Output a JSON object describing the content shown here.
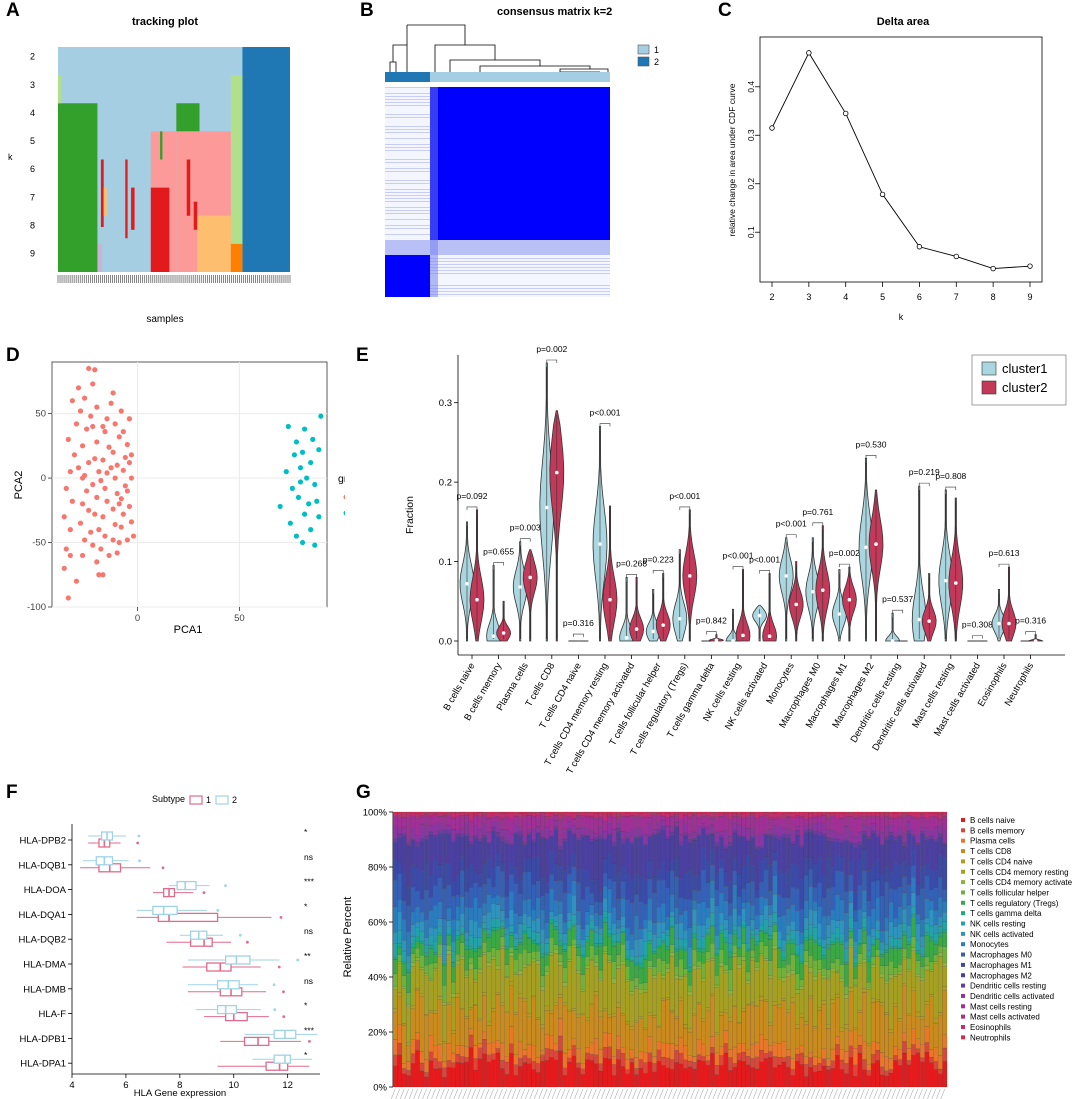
{
  "panel_labels": [
    "A",
    "B",
    "C",
    "D",
    "E",
    "F",
    "G"
  ],
  "colors": {
    "light_blue": "#a6cee3",
    "dark_blue": "#1f78b4",
    "green": "#33a02c",
    "light_green": "#b2df8a",
    "red": "#e31a1c",
    "pink": "#fb9a99",
    "light_orange": "#fdbf6f",
    "orange": "#ff7f00",
    "lavender": "#cab2d6",
    "blue": "#0000ff",
    "salmon": "#f8766d",
    "teal": "#00bfc4",
    "violin_blue": "#aad6df",
    "violin_red": "#c4395a",
    "box_pink": "#e06b8b",
    "box_blue": "#9fd3e6"
  },
  "chart_data": [
    {
      "id": "A",
      "type": "heatmap",
      "title": "tracking plot",
      "xlabel": "samples",
      "ylabel": "k",
      "rows": [
        "2",
        "3",
        "4",
        "5",
        "6",
        "7",
        "8",
        "9"
      ]
    },
    {
      "id": "B",
      "type": "heatmap",
      "title": "consensus matrix k=2",
      "legend": [
        "1",
        "2"
      ]
    },
    {
      "id": "C",
      "type": "line",
      "title": "Delta area",
      "xlabel": "k",
      "ylabel": "relative change in area under CDF curve",
      "x": [
        2,
        3,
        4,
        5,
        6,
        7,
        8,
        9
      ],
      "y": [
        0.315,
        0.47,
        0.345,
        0.178,
        0.07,
        0.05,
        0.025,
        0.03
      ],
      "xlim": [
        2,
        9
      ],
      "ylim": [
        0.02,
        0.48
      ],
      "xticks": [
        "2",
        "3",
        "4",
        "5",
        "6",
        "7",
        "8",
        "9"
      ],
      "yticks": [
        0.1,
        0.2,
        0.3,
        0.4
      ],
      "ytick_labels": [
        "0.1",
        "0.2",
        "0.3",
        "0.4"
      ]
    },
    {
      "id": "D",
      "type": "scatter",
      "xlabel": "PCA1",
      "ylabel": "PCA2",
      "xlim": [
        -42,
        93
      ],
      "ylim": [
        -100,
        90
      ],
      "xticks": [
        0,
        50
      ],
      "xtick_labels": [
        "0",
        "50"
      ],
      "yticks": [
        -100,
        -50,
        0,
        50
      ],
      "ytick_labels": [
        "-100",
        "-50",
        "0",
        "50"
      ],
      "legend_title": "group",
      "series": [
        {
          "name": "cluster1",
          "points": [
            [
              -36,
              -70
            ],
            [
              -34,
              -93
            ],
            [
              -35,
              -55
            ],
            [
              -33,
              -40
            ],
            [
              -36,
              -30
            ],
            [
              -32,
              -18
            ],
            [
              -35,
              -8
            ],
            [
              -33,
              5
            ],
            [
              -31,
              18
            ],
            [
              -34,
              30
            ],
            [
              -30,
              42
            ],
            [
              -28,
              52
            ],
            [
              -32,
              60
            ],
            [
              -29,
              70
            ],
            [
              -27,
              -60
            ],
            [
              -26,
              -48
            ],
            [
              -28,
              -35
            ],
            [
              -27,
              -20
            ],
            [
              -25,
              -10
            ],
            [
              -26,
              2
            ],
            [
              -24,
              12
            ],
            [
              -27,
              25
            ],
            [
              -25,
              38
            ],
            [
              -23,
              48
            ],
            [
              -26,
              62
            ],
            [
              -24,
              85
            ],
            [
              -21,
              84
            ],
            [
              -22,
              73
            ],
            [
              -20,
              55
            ],
            [
              -22,
              40
            ],
            [
              -20,
              28
            ],
            [
              -21,
              15
            ],
            [
              -19,
              5
            ],
            [
              -22,
              -5
            ],
            [
              -20,
              -15
            ],
            [
              -21,
              -28
            ],
            [
              -19,
              -40
            ],
            [
              -22,
              -52
            ],
            [
              -20,
              -65
            ],
            [
              -17,
              -75
            ],
            [
              -18,
              -55
            ],
            [
              -16,
              -45
            ],
            [
              -17,
              -30
            ],
            [
              -15,
              -18
            ],
            [
              -16,
              -8
            ],
            [
              -15,
              4
            ],
            [
              -17,
              14
            ],
            [
              -14,
              24
            ],
            [
              -16,
              36
            ],
            [
              -15,
              46
            ],
            [
              -13,
              58
            ],
            [
              -12,
              66
            ],
            [
              -14,
              -60
            ],
            [
              -12,
              -48
            ],
            [
              -11,
              -36
            ],
            [
              -12,
              -24
            ],
            [
              -10,
              -12
            ],
            [
              -11,
              0
            ],
            [
              -10,
              10
            ],
            [
              -12,
              20
            ],
            [
              -9,
              32
            ],
            [
              -11,
              42
            ],
            [
              -8,
              52
            ],
            [
              -9,
              -50
            ],
            [
              -8,
              -38
            ],
            [
              -7,
              -28
            ],
            [
              -8,
              -16
            ],
            [
              -6,
              -6
            ],
            [
              -7,
              6
            ],
            [
              -6,
              16
            ],
            [
              -5,
              26
            ],
            [
              -7,
              36
            ],
            [
              -4,
              46
            ],
            [
              -4,
              -22
            ],
            [
              -5,
              -10
            ],
            [
              -3,
              0
            ],
            [
              -4,
              12
            ],
            [
              -3,
              -34
            ],
            [
              -2,
              -45
            ],
            [
              -30,
              -80
            ],
            [
              -24,
              -25
            ],
            [
              -18,
              -2
            ],
            [
              -13,
              8
            ],
            [
              -10,
              -58
            ],
            [
              -5,
              -48
            ],
            [
              -29,
              8
            ],
            [
              -23,
              -42
            ],
            [
              -17,
              40
            ],
            [
              -33,
              -60
            ],
            [
              -3,
              18
            ],
            [
              -9,
              -20
            ],
            [
              -27,
              0
            ],
            [
              -19,
              -75
            ]
          ]
        },
        {
          "name": "cluster2",
          "points": [
            [
              70,
              -22
            ],
            [
              73,
              5
            ],
            [
              74,
              40
            ],
            [
              75,
              -35
            ],
            [
              76,
              -8
            ],
            [
              77,
              18
            ],
            [
              78,
              -45
            ],
            [
              78,
              28
            ],
            [
              79,
              -15
            ],
            [
              80,
              8
            ],
            [
              80,
              -3
            ],
            [
              81,
              -50
            ],
            [
              81,
              20
            ],
            [
              82,
              -28
            ],
            [
              82,
              38
            ],
            [
              83,
              0
            ],
            [
              84,
              -20
            ],
            [
              85,
              12
            ],
            [
              85,
              -40
            ],
            [
              86,
              30
            ],
            [
              87,
              -52
            ],
            [
              87,
              -5
            ],
            [
              88,
              -18
            ],
            [
              89,
              22
            ],
            [
              89,
              -30
            ],
            [
              90,
              48
            ]
          ]
        }
      ]
    },
    {
      "id": "E",
      "type": "violin",
      "ylabel": "Fraction",
      "ylim": [
        0,
        0.35
      ],
      "yticks": [
        0.0,
        0.1,
        0.2,
        0.3
      ],
      "ytick_labels": [
        "0.0",
        "0.1",
        "0.2",
        "0.3"
      ],
      "legend": [
        "cluster1",
        "cluster2"
      ],
      "categories": [
        "B cells naive",
        "B cells memory",
        "Plasma cells",
        "T cells CD8",
        "T cells CD4 naive",
        "T cells CD4 memory resting",
        "T cells CD4 memory activated",
        "T cells follicular helper",
        "T cells regulatory (Tregs)",
        "T cells gamma delta",
        "NK cells resting",
        "NK cells activated",
        "Monocytes",
        "Macrophages M0",
        "Macrophages M1",
        "Macrophages M2",
        "Dendritic cells resting",
        "Dendritic cells activated",
        "Mast cells resting",
        "Mast cells activated",
        "Eosinophils",
        "Neutrophils"
      ],
      "pvalues": [
        "p=0.092",
        "p=0.655",
        "p=0.003",
        "p=0.002",
        "p=0.316",
        "p<0.001",
        "p=0.268",
        "p=0.223",
        "p<0.001",
        "p=0.842",
        "p<0.001",
        "p<0.001",
        "p<0.001",
        "p=0.761",
        "p=0.002",
        "p=0.530",
        "p=0.537",
        "p=0.219",
        "p=0.808",
        "p=0.308",
        "p=0.613",
        "p=0.316"
      ],
      "series": [
        {
          "name": "cluster1",
          "max": [
            0.15,
            0.095,
            0.125,
            0.35,
            0.005,
            0.27,
            0.08,
            0.065,
            0.115,
            0.005,
            0.04,
            0.045,
            0.13,
            0.13,
            0.09,
            0.23,
            0.035,
            0.195,
            0.19,
            0.003,
            0.065,
            0.005
          ],
          "median": [
            0.072,
            0.006,
            0.068,
            0.168,
            0.0,
            0.122,
            0.004,
            0.012,
            0.028,
            0.0,
            0.0,
            0.032,
            0.082,
            0.062,
            0.034,
            0.118,
            0.0,
            0.027,
            0.076,
            0.0,
            0.022,
            0.0
          ]
        },
        {
          "name": "cluster2",
          "max": [
            0.165,
            0.05,
            0.115,
            0.29,
            0.003,
            0.17,
            0.08,
            0.085,
            0.165,
            0.008,
            0.09,
            0.085,
            0.1,
            0.145,
            0.093,
            0.19,
            0.005,
            0.085,
            0.18,
            0.003,
            0.093,
            0.008
          ],
          "median": [
            0.052,
            0.01,
            0.08,
            0.212,
            0.0,
            0.052,
            0.015,
            0.02,
            0.082,
            0.001,
            0.007,
            0.006,
            0.046,
            0.064,
            0.052,
            0.122,
            0.0,
            0.025,
            0.073,
            0.0,
            0.022,
            0.0
          ]
        }
      ]
    },
    {
      "id": "F",
      "type": "boxplot",
      "xlabel": "HLA Gene expression",
      "legend_title": "Subtype",
      "legend": [
        "1",
        "2"
      ],
      "xlim": [
        4,
        13.2
      ],
      "xticks": [
        4,
        6,
        8,
        10,
        12
      ],
      "xtick_labels": [
        "4",
        "6",
        "8",
        "10",
        "12"
      ],
      "categories": [
        "HLA-DPB2",
        "HLA-DQB1",
        "HLA-DOA",
        "HLA-DQA1",
        "HLA-DQB2",
        "HLA-DMA",
        "HLA-DMB",
        "HLA-F",
        "HLA-DPB1",
        "HLA-DPA1"
      ],
      "significance": [
        "*",
        "ns",
        "***",
        "*",
        "ns",
        "**",
        "ns",
        "*",
        "***",
        "*"
      ],
      "series": [
        {
          "name": "1",
          "stats": [
            [
              4.6,
              5.0,
              5.2,
              5.4,
              5.8
            ],
            [
              4.3,
              5.0,
              5.4,
              5.8,
              6.9
            ],
            [
              7.0,
              7.4,
              7.6,
              7.8,
              8.5
            ],
            [
              6.4,
              7.2,
              7.6,
              9.4,
              11.4
            ],
            [
              7.5,
              8.4,
              8.9,
              9.2,
              9.9
            ],
            [
              8.1,
              9.0,
              9.5,
              9.9,
              11.0
            ],
            [
              8.3,
              9.5,
              9.9,
              10.3,
              11.2
            ],
            [
              8.9,
              9.7,
              10.0,
              10.5,
              11.3
            ],
            [
              9.5,
              10.4,
              10.9,
              11.3,
              12.5
            ],
            [
              9.4,
              11.2,
              11.7,
              12.0,
              12.8
            ]
          ]
        },
        {
          "name": "2",
          "stats": [
            [
              4.6,
              5.1,
              5.3,
              5.5,
              6.0
            ],
            [
              4.4,
              4.9,
              5.2,
              5.5,
              6.1
            ],
            [
              7.6,
              7.9,
              8.2,
              8.6,
              9.1
            ],
            [
              6.4,
              7.0,
              7.4,
              7.9,
              9.0
            ],
            [
              8.0,
              8.4,
              8.7,
              9.0,
              9.6
            ],
            [
              8.3,
              9.7,
              10.1,
              10.6,
              11.7
            ],
            [
              8.3,
              9.4,
              9.8,
              10.2,
              10.9
            ],
            [
              8.6,
              9.4,
              9.7,
              10.1,
              11.0
            ],
            [
              10.4,
              11.5,
              11.9,
              12.3,
              13.1
            ],
            [
              10.7,
              11.5,
              11.9,
              12.1,
              12.9
            ]
          ]
        }
      ]
    },
    {
      "id": "G",
      "type": "bar",
      "stacked": true,
      "ylabel": "Relative Percent",
      "ylim": [
        0,
        100
      ],
      "yticks": [
        0,
        20,
        40,
        60,
        80,
        100
      ],
      "ytick_labels": [
        "0%",
        "20%",
        "40%",
        "60%",
        "80%",
        "100%"
      ],
      "n_samples": 124,
      "legend": [
        "B cells naive",
        "B cells memory",
        "Plasma cells",
        "T cells CD8",
        "T cells CD4 naive",
        "T cells CD4 memory resting",
        "T cells CD4 memory activated",
        "T cells follicular helper",
        "T cells regulatory (Tregs)",
        "T cells gamma delta",
        "NK cells resting",
        "NK cells activated",
        "Monocytes",
        "Macrophages M0",
        "Macrophages M1",
        "Macrophages M2",
        "Dendritic cells resting",
        "Dendritic cells activated",
        "Mast cells resting",
        "Mast cells activated",
        "Eosinophils",
        "Neutrophils"
      ],
      "legend_colors": [
        "#e41a1c",
        "#d9473a",
        "#e8772a",
        "#c98a1e",
        "#b39a22",
        "#a6a022",
        "#8fb03a",
        "#6fb13a",
        "#3aa844",
        "#1fa87e",
        "#23a3a8",
        "#2e93bd",
        "#2b7bbf",
        "#3460b5",
        "#3b4aa6",
        "#4b3fa0",
        "#6b3ba0",
        "#8b35a0",
        "#a02f96",
        "#b32f85",
        "#c42d6f",
        "#d62a50"
      ],
      "mean_values": [
        8,
        3,
        4,
        12,
        1,
        14,
        1,
        4,
        5,
        1,
        3,
        4,
        6,
        8,
        7,
        10,
        1,
        3,
        4,
        0.5,
        1,
        0.5
      ]
    }
  ]
}
